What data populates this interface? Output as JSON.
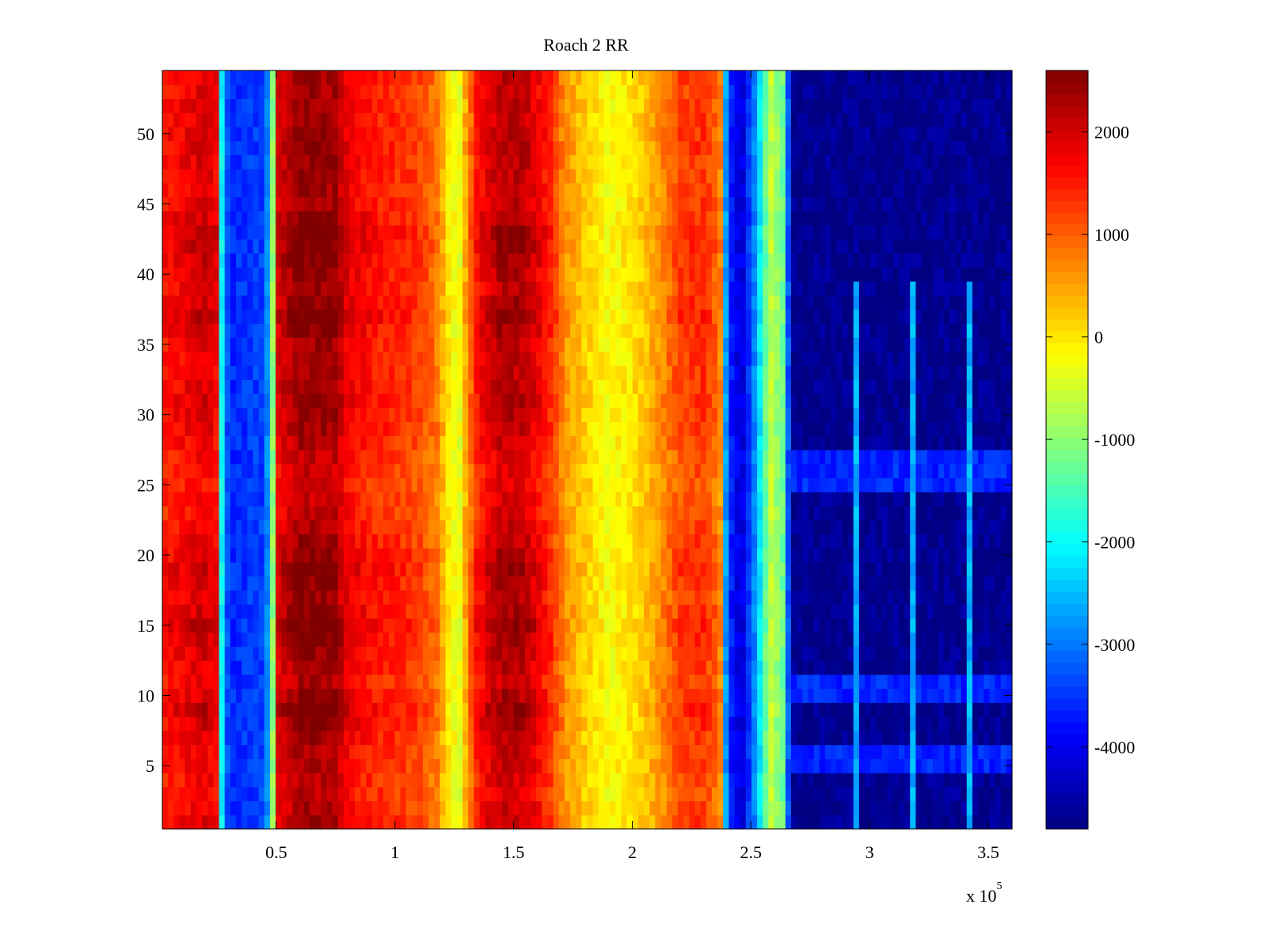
{
  "chart_data": {
    "type": "heatmap",
    "title": "Roach 2 RR",
    "xlabel": "",
    "ylabel": "",
    "x_scale_label": "x 10",
    "x_scale_exponent": "5",
    "xlim": [
      0.02,
      3.6
    ],
    "ylim": [
      0.5,
      54.5
    ],
    "x_ticks": [
      0.5,
      1,
      1.5,
      2,
      2.5,
      3,
      3.5
    ],
    "x_tick_labels": [
      "0.5",
      "1",
      "1.5",
      "2",
      "2.5",
      "3",
      "3.5"
    ],
    "y_ticks": [
      5,
      10,
      15,
      20,
      25,
      30,
      35,
      40,
      45,
      50
    ],
    "y_tick_labels": [
      "5",
      "10",
      "15",
      "20",
      "25",
      "30",
      "35",
      "40",
      "45",
      "50"
    ],
    "rows": 54,
    "colormap": "jet",
    "clim": [
      -4800,
      2600
    ],
    "colorbar": {
      "ticks": [
        2000,
        1000,
        0,
        -1000,
        -2000,
        -3000,
        -4000
      ],
      "tick_labels": [
        "2000",
        "1000",
        "0",
        "-1000",
        "-2000",
        "-3000",
        "-4000"
      ]
    },
    "band_profile": [
      [
        0.02,
        1500
      ],
      [
        0.1,
        1700
      ],
      [
        0.2,
        1900
      ],
      [
        0.25,
        1700
      ],
      [
        0.27,
        -2000
      ],
      [
        0.3,
        -3600
      ],
      [
        0.45,
        -3400
      ],
      [
        0.48,
        -2000
      ],
      [
        0.5,
        1800
      ],
      [
        0.6,
        2400
      ],
      [
        0.75,
        2300
      ],
      [
        0.8,
        1800
      ],
      [
        0.9,
        1500
      ],
      [
        1.0,
        1400
      ],
      [
        1.1,
        1200
      ],
      [
        1.18,
        800
      ],
      [
        1.22,
        0
      ],
      [
        1.27,
        -400
      ],
      [
        1.3,
        500
      ],
      [
        1.35,
        1600
      ],
      [
        1.45,
        2200
      ],
      [
        1.55,
        2100
      ],
      [
        1.65,
        1400
      ],
      [
        1.72,
        600
      ],
      [
        1.8,
        200
      ],
      [
        1.9,
        -200
      ],
      [
        2.0,
        0
      ],
      [
        2.1,
        500
      ],
      [
        2.2,
        1200
      ],
      [
        2.3,
        1300
      ],
      [
        2.37,
        800
      ],
      [
        2.4,
        -3500
      ],
      [
        2.46,
        -4200
      ],
      [
        2.52,
        -2800
      ],
      [
        2.58,
        -600
      ],
      [
        2.64,
        -1300
      ],
      [
        2.67,
        -4700
      ],
      [
        2.8,
        -4700
      ],
      [
        3.6,
        -4700
      ]
    ],
    "row_profile": [
      [
        1,
        1.0
      ],
      [
        3,
        0.9
      ],
      [
        5,
        0.95
      ],
      [
        7,
        1.0
      ],
      [
        9,
        1.15
      ],
      [
        11,
        0.95
      ],
      [
        13,
        1.05
      ],
      [
        15,
        1.15
      ],
      [
        17,
        1.0
      ],
      [
        19,
        1.1
      ],
      [
        21,
        1.0
      ],
      [
        23,
        0.9
      ],
      [
        25,
        0.85
      ],
      [
        27,
        0.9
      ],
      [
        29,
        1.0
      ],
      [
        31,
        1.05
      ],
      [
        33,
        1.0
      ],
      [
        35,
        1.0
      ],
      [
        37,
        1.15
      ],
      [
        39,
        1.0
      ],
      [
        41,
        1.1
      ],
      [
        43,
        1.15
      ],
      [
        45,
        1.0
      ],
      [
        47,
        1.0
      ],
      [
        49,
        1.05
      ],
      [
        51,
        1.0
      ],
      [
        54,
        1.0
      ]
    ],
    "bright_rows": [
      5,
      6,
      10,
      11,
      25,
      26,
      27
    ],
    "spikes_x": [
      2.95,
      3.18,
      3.41
    ]
  }
}
